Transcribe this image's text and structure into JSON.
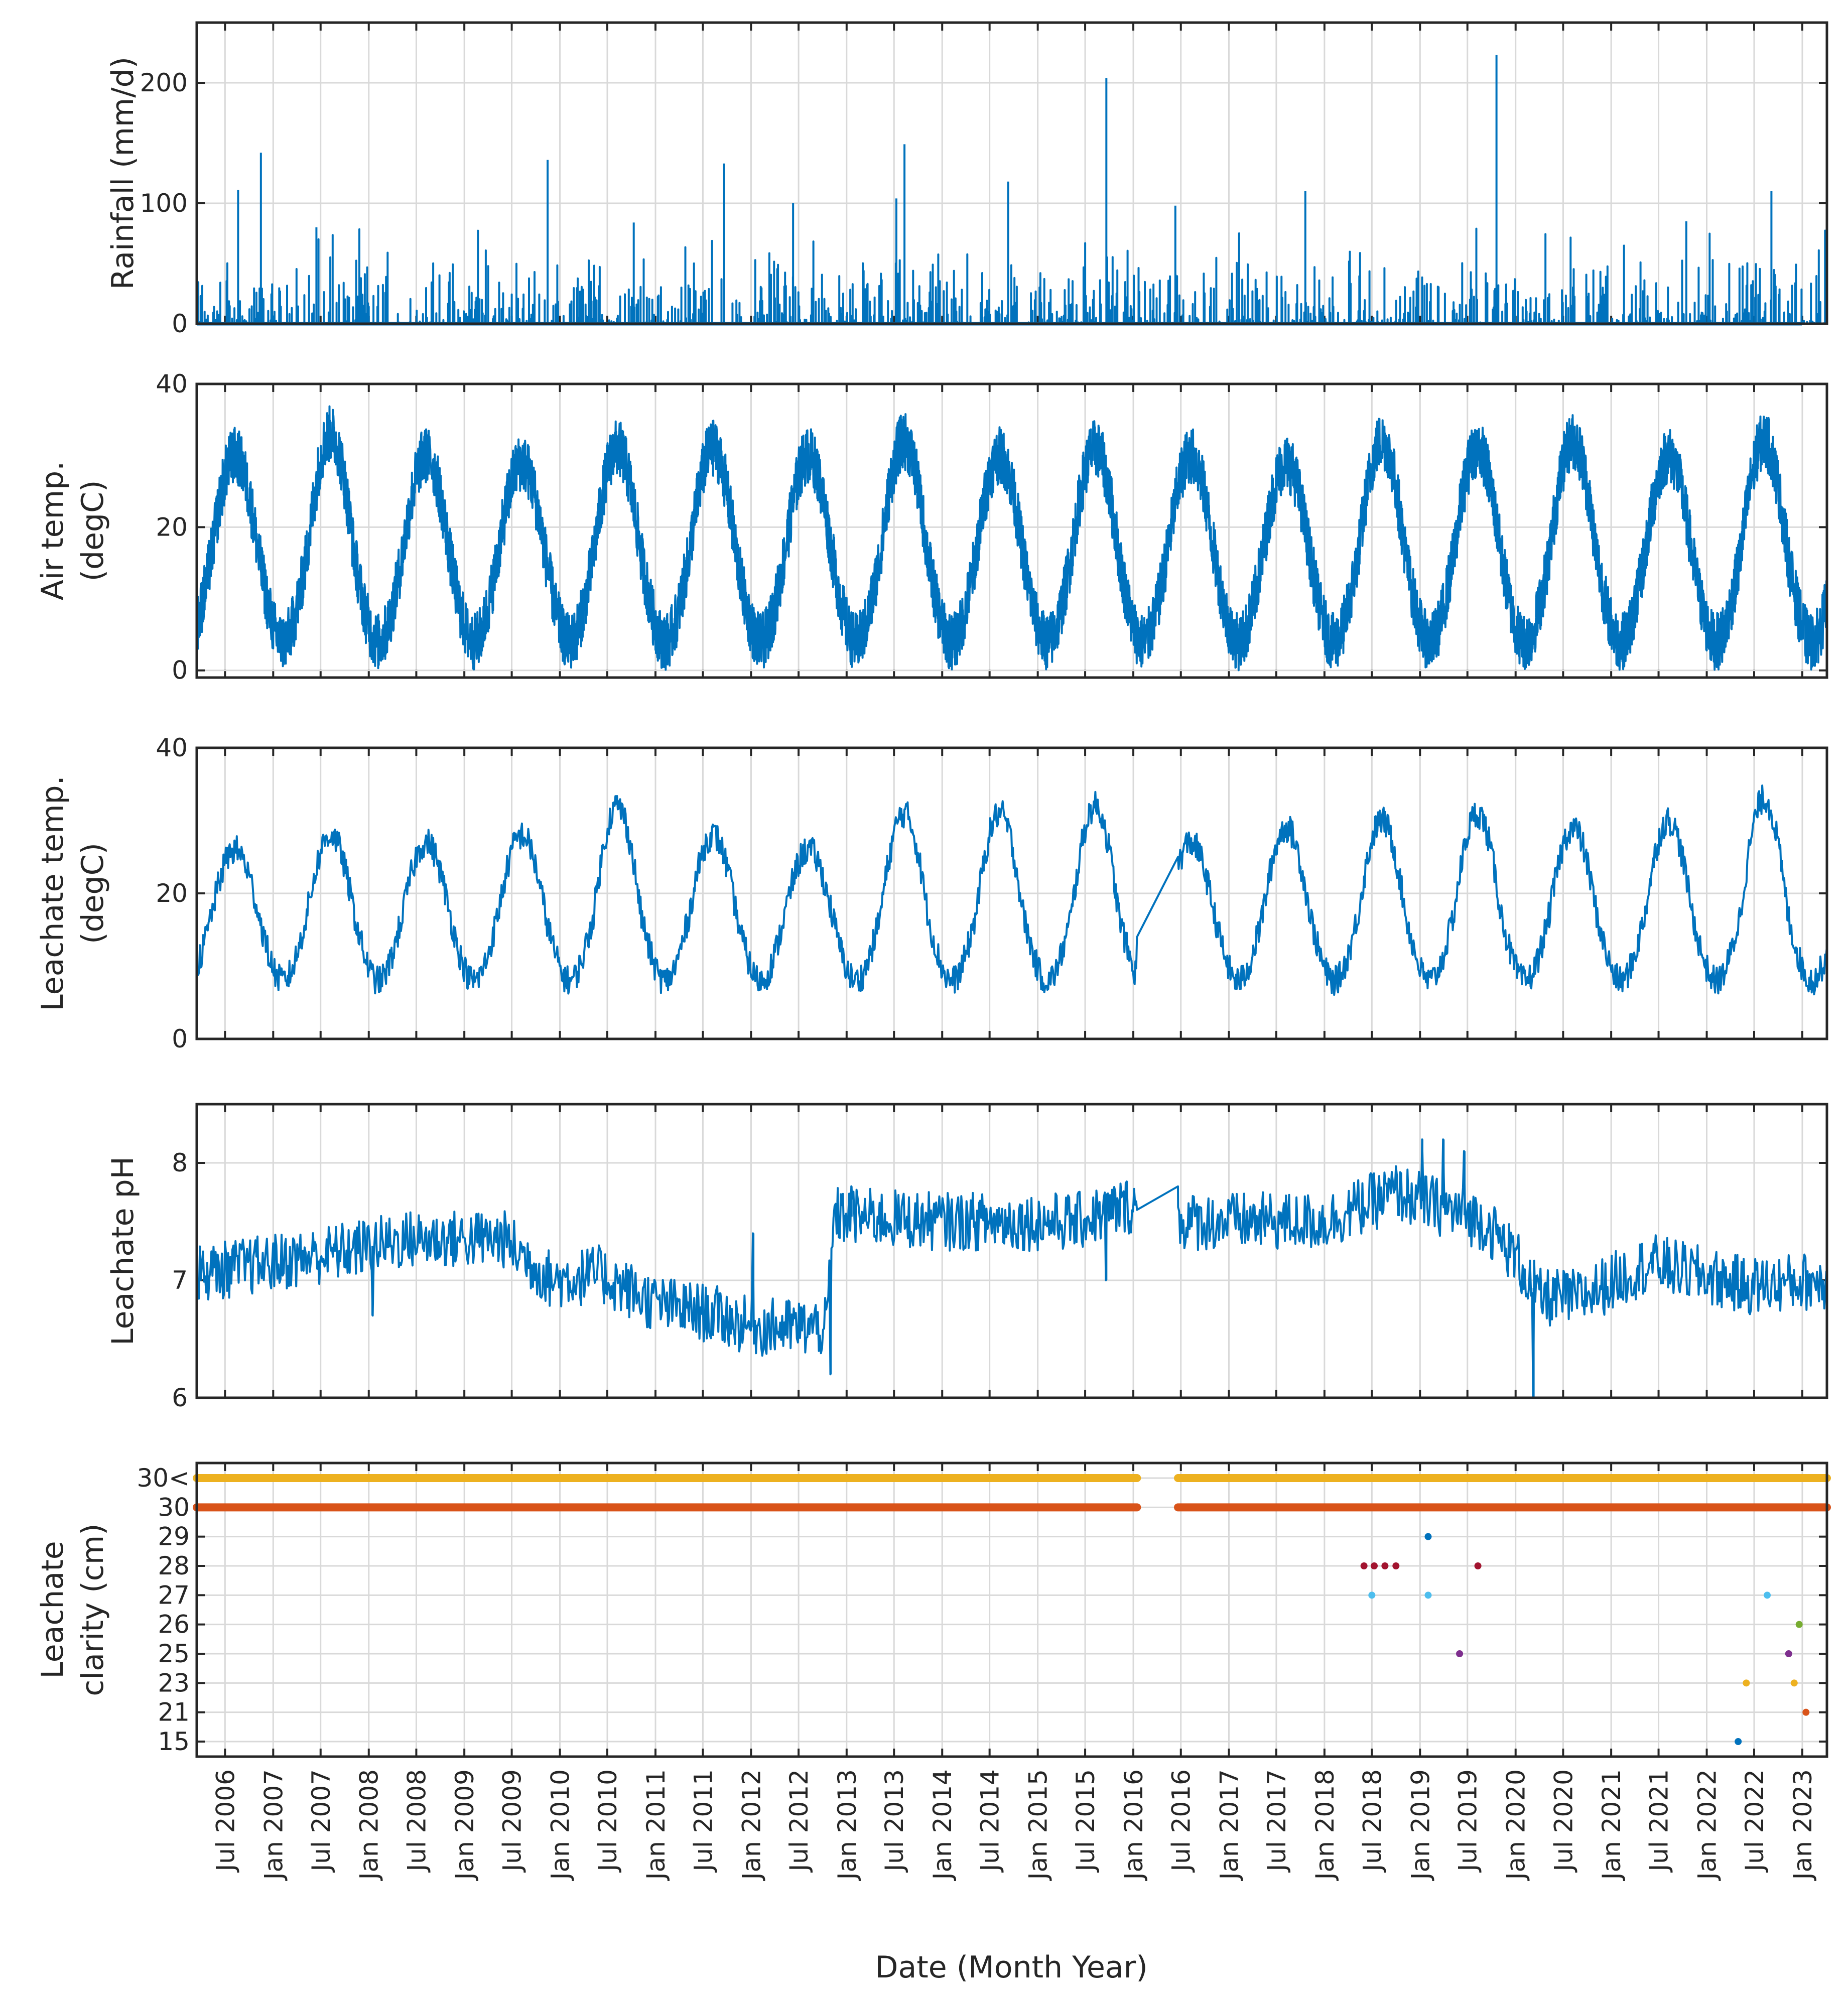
{
  "chart_data": [
    {
      "type": "bar",
      "id": "rainfall",
      "ylabel": "Rainfall (mm/d)",
      "ylim": [
        0,
        250
      ],
      "yticks": [
        0,
        100,
        200
      ],
      "color": "#0072BD",
      "baseline": 5,
      "noise_amplitude": 30,
      "peaks": [
        {
          "date": "2006-08-20",
          "value": 111
        },
        {
          "date": "2006-11-15",
          "value": 142
        },
        {
          "date": "2007-06-15",
          "value": 80
        },
        {
          "date": "2009-11-15",
          "value": 136
        },
        {
          "date": "2010-10-10",
          "value": 84
        },
        {
          "date": "2011-09-20",
          "value": 133
        },
        {
          "date": "2012-06-10",
          "value": 100
        },
        {
          "date": "2013-07-10",
          "value": 104
        },
        {
          "date": "2013-08-10",
          "value": 149
        },
        {
          "date": "2014-09-10",
          "value": 118
        },
        {
          "date": "2015-09-20",
          "value": 204
        },
        {
          "date": "2016-06-10",
          "value": 98
        },
        {
          "date": "2017-10-20",
          "value": 110
        },
        {
          "date": "2019-10-20",
          "value": 223
        },
        {
          "date": "2021-10-15",
          "value": 85
        },
        {
          "date": "2022-09-05",
          "value": 110
        }
      ]
    },
    {
      "type": "line",
      "id": "air_temp",
      "ylabel": [
        "Air temp.",
        "(degC)"
      ],
      "ylim": [
        -1,
        40
      ],
      "yticks": [
        0,
        20,
        40
      ],
      "color": "#0072BD",
      "seasonal_mean": 16,
      "seasonal_amplitude": 12,
      "noise_amplitude": 4,
      "annual_peaks": [
        {
          "year": 2006,
          "value": 30
        },
        {
          "year": 2007,
          "value": 33
        },
        {
          "year": 2008,
          "value": 30
        },
        {
          "year": 2009,
          "value": 29
        },
        {
          "year": 2010,
          "value": 31
        },
        {
          "year": 2011,
          "value": 31
        },
        {
          "year": 2012,
          "value": 30
        },
        {
          "year": 2013,
          "value": 32
        },
        {
          "year": 2014,
          "value": 30
        },
        {
          "year": 2015,
          "value": 31
        },
        {
          "year": 2016,
          "value": 30
        },
        {
          "year": 2017,
          "value": 29
        },
        {
          "year": 2018,
          "value": 32
        },
        {
          "year": 2019,
          "value": 31
        },
        {
          "year": 2020,
          "value": 32
        },
        {
          "year": 2021,
          "value": 30
        },
        {
          "year": 2022,
          "value": 32
        }
      ]
    },
    {
      "type": "line",
      "id": "leachate_temp",
      "ylabel": [
        "Leachate temp.",
        "(degC)"
      ],
      "ylim": [
        0,
        40
      ],
      "yticks": [
        0,
        20,
        40
      ],
      "color": "#0072BD",
      "seasonal_mean": 17,
      "seasonal_amplitude": 9,
      "noise_amplitude": 2,
      "gap": {
        "start": "2016-01-15",
        "end": "2016-06-20",
        "start_value": 14,
        "end_value": 25
      },
      "annual_peaks": [
        {
          "year": 2006,
          "value": 26
        },
        {
          "year": 2007,
          "value": 28
        },
        {
          "year": 2008,
          "value": 27
        },
        {
          "year": 2009,
          "value": 28
        },
        {
          "year": 2010,
          "value": 32
        },
        {
          "year": 2011,
          "value": 28
        },
        {
          "year": 2012,
          "value": 26
        },
        {
          "year": 2013,
          "value": 31
        },
        {
          "year": 2014,
          "value": 31
        },
        {
          "year": 2015,
          "value": 32
        },
        {
          "year": 2016,
          "value": 27
        },
        {
          "year": 2017,
          "value": 29
        },
        {
          "year": 2018,
          "value": 30
        },
        {
          "year": 2019,
          "value": 31
        },
        {
          "year": 2020,
          "value": 29
        },
        {
          "year": 2021,
          "value": 30
        },
        {
          "year": 2022,
          "value": 33
        }
      ]
    },
    {
      "type": "line",
      "id": "leachate_ph",
      "ylabel": "Leachate pH",
      "ylim": [
        6,
        8.5
      ],
      "yticks": [
        6,
        7,
        8
      ],
      "color": "#0072BD",
      "noise_amplitude": 0.25,
      "level_path": [
        {
          "date": "2006-03-01",
          "value": 7.05
        },
        {
          "date": "2007-06-01",
          "value": 7.2
        },
        {
          "date": "2008-06-01",
          "value": 7.35
        },
        {
          "date": "2009-06-01",
          "value": 7.35
        },
        {
          "date": "2009-12-01",
          "value": 7.0
        },
        {
          "date": "2010-06-01",
          "value": 7.05
        },
        {
          "date": "2011-01-01",
          "value": 6.8
        },
        {
          "date": "2011-09-01",
          "value": 6.7
        },
        {
          "date": "2012-01-01",
          "value": 6.6
        },
        {
          "date": "2012-10-15",
          "value": 6.6
        },
        {
          "date": "2012-11-15",
          "value": 7.55
        },
        {
          "date": "2014-01-01",
          "value": 7.5
        },
        {
          "date": "2015-06-01",
          "value": 7.5
        },
        {
          "date": "2016-01-01",
          "value": 7.65
        },
        {
          "date": "2016-06-15",
          "value": 7.5
        },
        {
          "date": "2018-01-01",
          "value": 7.5
        },
        {
          "date": "2018-10-01",
          "value": 7.75
        },
        {
          "date": "2019-09-01",
          "value": 7.5
        },
        {
          "date": "2020-01-01",
          "value": 7.2
        },
        {
          "date": "2020-04-01",
          "value": 6.85
        },
        {
          "date": "2020-09-01",
          "value": 6.85
        },
        {
          "date": "2021-06-01",
          "value": 7.15
        },
        {
          "date": "2022-06-01",
          "value": 6.95
        },
        {
          "date": "2023-03-01",
          "value": 7.0
        }
      ],
      "gap": {
        "start": "2016-01-15",
        "end": "2016-06-20",
        "start_value": 7.6,
        "end_value": 7.8
      },
      "spikes": [
        {
          "date": "2008-01-15",
          "value": 6.7
        },
        {
          "date": "2012-01-10",
          "value": 7.4
        },
        {
          "date": "2012-11-01",
          "value": 6.2
        },
        {
          "date": "2013-01-20",
          "value": 7.8
        },
        {
          "date": "2015-09-20",
          "value": 7.0
        },
        {
          "date": "2019-01-10",
          "value": 8.2
        },
        {
          "date": "2019-04-01",
          "value": 8.2
        },
        {
          "date": "2019-06-20",
          "value": 8.1
        },
        {
          "date": "2020-03-10",
          "value": 6.0
        }
      ]
    },
    {
      "type": "scatter",
      "id": "leachate_clarity",
      "ylabel": [
        "Leachate",
        "clarity (cm)"
      ],
      "categories": [
        "15",
        "21",
        "23",
        "25",
        "26",
        "27",
        "28",
        "29",
        "30",
        "30<"
      ],
      "gap": {
        "start": "2016-01-15",
        "end": "2016-06-20"
      },
      "continuous_rows": [
        {
          "category": "30<",
          "color": "#EDB120"
        },
        {
          "category": "30",
          "color": "#D95319"
        }
      ],
      "points": [
        {
          "date": "2018-06-01",
          "category": "28",
          "color": "#A2142F"
        },
        {
          "date": "2018-07-10",
          "category": "28",
          "color": "#A2142F"
        },
        {
          "date": "2018-08-20",
          "category": "28",
          "color": "#A2142F"
        },
        {
          "date": "2018-10-01",
          "category": "28",
          "color": "#A2142F"
        },
        {
          "date": "2018-07-01",
          "category": "27",
          "color": "#4DBEEE"
        },
        {
          "date": "2019-02-01",
          "category": "29",
          "color": "#0072BD"
        },
        {
          "date": "2019-02-01",
          "category": "27",
          "color": "#4DBEEE"
        },
        {
          "date": "2019-06-01",
          "category": "25",
          "color": "#7E2F8E"
        },
        {
          "date": "2019-08-10",
          "category": "28",
          "color": "#A2142F"
        },
        {
          "date": "2022-05-01",
          "category": "15",
          "color": "#0072BD"
        },
        {
          "date": "2022-06-01",
          "category": "23",
          "color": "#EDB120"
        },
        {
          "date": "2022-08-20",
          "category": "27",
          "color": "#4DBEEE"
        },
        {
          "date": "2022-11-10",
          "category": "25",
          "color": "#7E2F8E"
        },
        {
          "date": "2022-12-01",
          "category": "23",
          "color": "#EDB120"
        },
        {
          "date": "2022-12-20",
          "category": "26",
          "color": "#77AC30"
        },
        {
          "date": "2023-01-15",
          "category": "21",
          "color": "#D95319"
        }
      ]
    }
  ],
  "x_axis": {
    "xlabel": "Date (Month Year)",
    "range": [
      "2006-03-15",
      "2023-04-05"
    ],
    "tick_labels": [
      "Jul 2006",
      "Jan 2007",
      "Jul 2007",
      "Jan 2008",
      "Jul 2008",
      "Jan 2009",
      "Jul 2009",
      "Jan 2010",
      "Jul 2010",
      "Jan 2011",
      "Jul 2011",
      "Jan 2012",
      "Jul 2012",
      "Jan 2013",
      "Jul 2013",
      "Jan 2014",
      "Jul 2014",
      "Jan 2015",
      "Jul 2015",
      "Jan 2016",
      "Jul 2016",
      "Jan 2017",
      "Jul 2017",
      "Jan 2018",
      "Jul 2018",
      "Jan 2019",
      "Jul 2019",
      "Jan 2020",
      "Jul 2020",
      "Jan 2021",
      "Jul 2021",
      "Jan 2022",
      "Jul 2022",
      "Jan 2023"
    ]
  }
}
